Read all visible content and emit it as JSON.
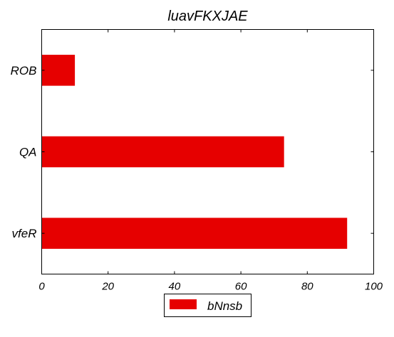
{
  "chart_data": {
    "type": "bar",
    "orientation": "horizontal",
    "title": "luavFKXJAE",
    "xlabel": "",
    "ylabel": "",
    "categories": [
      "ROB",
      "QA",
      "vfeR"
    ],
    "series": [
      {
        "name": "bNnsb",
        "values": [
          10,
          73,
          92
        ],
        "color": "#e60000"
      }
    ],
    "xlim": [
      0,
      100
    ],
    "xticks": [
      0,
      20,
      40,
      60,
      80,
      100
    ],
    "grid": false,
    "legend_position": "bottom-center"
  }
}
